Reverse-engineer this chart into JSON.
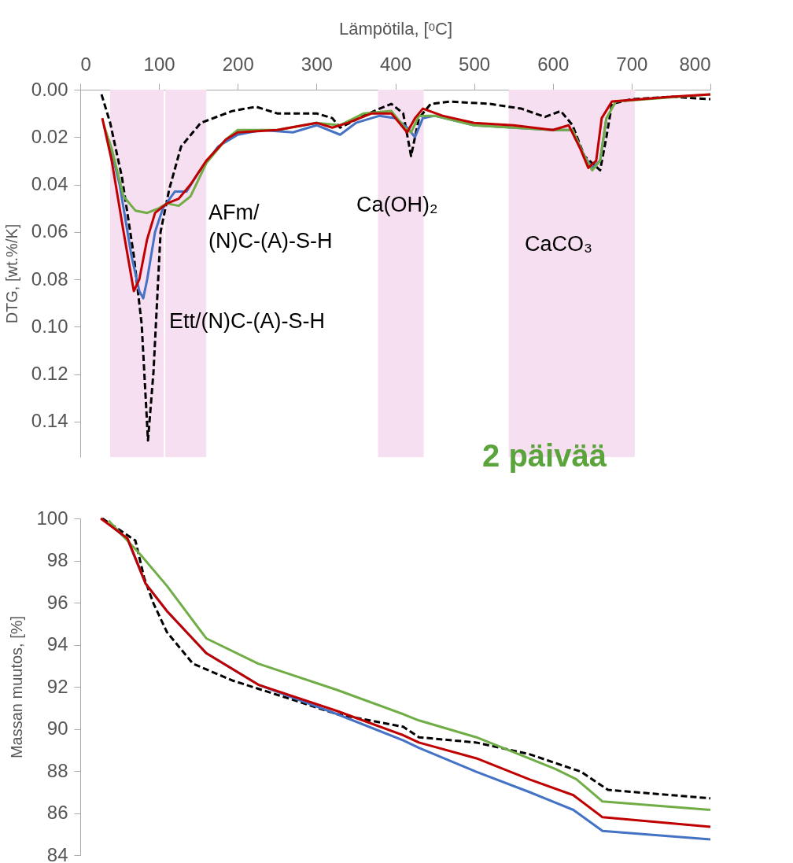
{
  "chart_data": [
    {
      "type": "line",
      "xlabel": "Lämpötila, [ᵒC]",
      "ylabel": "DTG, [wt.%/K]",
      "xlim": [
        0,
        800
      ],
      "xticks": [
        0,
        100,
        200,
        300,
        400,
        500,
        600,
        700,
        800
      ],
      "ylim": [
        0.155,
        0
      ],
      "yticks": [
        {
          "value": 0,
          "label": "0.00"
        },
        0.02,
        0.04,
        0.06,
        0.08,
        {
          "value": 0.1,
          "label": "0.10"
        },
        0.12,
        0.14
      ],
      "grid": false,
      "bands": [
        {
          "axis": "x",
          "from": 38,
          "to": 106,
          "color": "#f6dff0"
        },
        {
          "axis": "x",
          "from": 108,
          "to": 160,
          "color": "#f6dff0"
        },
        {
          "axis": "x",
          "from": 378,
          "to": 436,
          "color": "#f6dff0"
        },
        {
          "axis": "x",
          "from": 544,
          "to": 704,
          "color": "#f6dff0"
        }
      ],
      "annotations": [
        "AFm/\n(N)C-(A)-S-H",
        "Ett/(N)C-(A)-S-H",
        "Ca(OH)₂",
        "CaCO₃",
        "2 päivää"
      ],
      "series": [
        {
          "color": "#000000",
          "line_style": "dashed",
          "x": [
            27,
            38,
            53,
            68,
            78,
            86,
            93,
            102,
            113,
            128,
            153,
            193,
            223,
            250,
            300,
            320,
            330,
            360,
            380,
            395,
            410,
            420,
            430,
            445,
            470,
            520,
            560,
            590,
            610,
            625,
            640,
            660,
            668,
            675,
            700,
            750,
            800
          ],
          "values": [
            0.002,
            0.014,
            0.037,
            0.07,
            0.099,
            0.148,
            0.119,
            0.06,
            0.042,
            0.024,
            0.014,
            0.009,
            0.0072,
            0.01,
            0.01,
            0.012,
            0.016,
            0.011,
            0.008,
            0.006,
            0.01,
            0.028,
            0.012,
            0.006,
            0.005,
            0.006,
            0.008,
            0.0115,
            0.009,
            0.015,
            0.028,
            0.034,
            0.02,
            0.006,
            0.004,
            0.003,
            0.004
          ]
        },
        {
          "color": "#4472c4",
          "x": [
            36,
            50,
            65,
            75,
            80,
            85,
            95,
            105,
            120,
            135,
            150,
            175,
            200,
            230,
            270,
            300,
            330,
            350,
            380,
            400,
            415,
            425,
            435,
            450,
            500,
            550,
            600,
            625,
            640,
            650,
            660,
            668
          ],
          "values": [
            0.021,
            0.04,
            0.07,
            0.085,
            0.088,
            0.08,
            0.06,
            0.05,
            0.043,
            0.043,
            0.035,
            0.024,
            0.019,
            0.017,
            0.018,
            0.015,
            0.019,
            0.014,
            0.011,
            0.012,
            0.016,
            0.02,
            0.012,
            0.011,
            0.015,
            0.016,
            0.017,
            0.017,
            0.028,
            0.033,
            0.03,
            0.012
          ]
        },
        {
          "color": "#70ad47",
          "x": [
            30,
            40,
            55,
            70,
            85,
            100,
            110,
            125,
            140,
            160,
            185,
            200,
            250,
            300,
            330,
            360,
            395,
            412,
            420,
            430,
            450,
            500,
            550,
            600,
            625,
            640,
            650,
            660,
            668,
            680,
            800
          ],
          "values": [
            0.015,
            0.025,
            0.045,
            0.051,
            0.052,
            0.05,
            0.048,
            0.049,
            0.045,
            0.031,
            0.021,
            0.017,
            0.017,
            0.014,
            0.015,
            0.01,
            0.009,
            0.016,
            0.018,
            0.011,
            0.011,
            0.015,
            0.016,
            0.017,
            0.017,
            0.028,
            0.034,
            0.03,
            0.012,
            0.005,
            0.002
          ]
        },
        {
          "color": "#c00000",
          "x": [
            28,
            40,
            55,
            68,
            75,
            85,
            95,
            110,
            125,
            140,
            160,
            185,
            200,
            250,
            300,
            320,
            340,
            370,
            395,
            410,
            415,
            425,
            435,
            460,
            500,
            550,
            600,
            620,
            635,
            645,
            655,
            662,
            675,
            750,
            800
          ],
          "values": [
            0.012,
            0.03,
            0.06,
            0.085,
            0.08,
            0.063,
            0.052,
            0.048,
            0.046,
            0.04,
            0.03,
            0.021,
            0.018,
            0.017,
            0.014,
            0.016,
            0.014,
            0.01,
            0.01,
            0.016,
            0.018,
            0.012,
            0.008,
            0.011,
            0.014,
            0.015,
            0.017,
            0.015,
            0.025,
            0.033,
            0.03,
            0.012,
            0.005,
            0.003,
            0.002
          ]
        }
      ]
    },
    {
      "type": "line",
      "ylabel": "Massan muutos, [%]",
      "xlim": [
        0,
        800
      ],
      "ylim": [
        84,
        100
      ],
      "yticks": [
        84,
        86,
        88,
        90,
        92,
        94,
        96,
        98,
        100
      ],
      "grid": false,
      "tick_labels": "y",
      "series": [
        {
          "color": "#000000",
          "line_style": "dashed",
          "x": [
            28,
            70,
            81,
            93,
            110,
            143,
            193,
            260,
            326,
            410,
            430,
            503,
            570,
            636,
            670,
            800
          ],
          "values": [
            100.0,
            98.95,
            97.2,
            95.96,
            94.6,
            93.1,
            92.3,
            91.5,
            90.7,
            90.1,
            89.6,
            89.35,
            88.8,
            87.96,
            87.1,
            86.7
          ]
        },
        {
          "color": "#4472c4",
          "x": [
            38,
            60,
            83,
            110,
            160,
            226,
            326,
            410,
            430,
            503,
            570,
            626,
            663,
            800
          ],
          "values": [
            99.7,
            99.0,
            96.9,
            95.6,
            93.6,
            92.1,
            90.7,
            89.45,
            89.1,
            87.96,
            87.0,
            86.15,
            85.15,
            84.75
          ]
        },
        {
          "color": "#70ad47",
          "x": [
            36,
            76,
            110,
            160,
            226,
            326,
            410,
            430,
            503,
            603,
            630,
            663,
            800
          ],
          "values": [
            99.9,
            98.3,
            96.8,
            94.3,
            93.1,
            91.85,
            90.7,
            90.4,
            89.6,
            88.1,
            87.6,
            86.55,
            86.15
          ]
        },
        {
          "color": "#c00000",
          "x": [
            26,
            60,
            83,
            110,
            160,
            226,
            326,
            410,
            430,
            503,
            570,
            626,
            663,
            800
          ],
          "values": [
            100.0,
            99.05,
            96.9,
            95.6,
            93.6,
            92.1,
            90.85,
            89.7,
            89.35,
            88.6,
            87.6,
            86.85,
            85.8,
            85.35
          ]
        }
      ]
    }
  ]
}
